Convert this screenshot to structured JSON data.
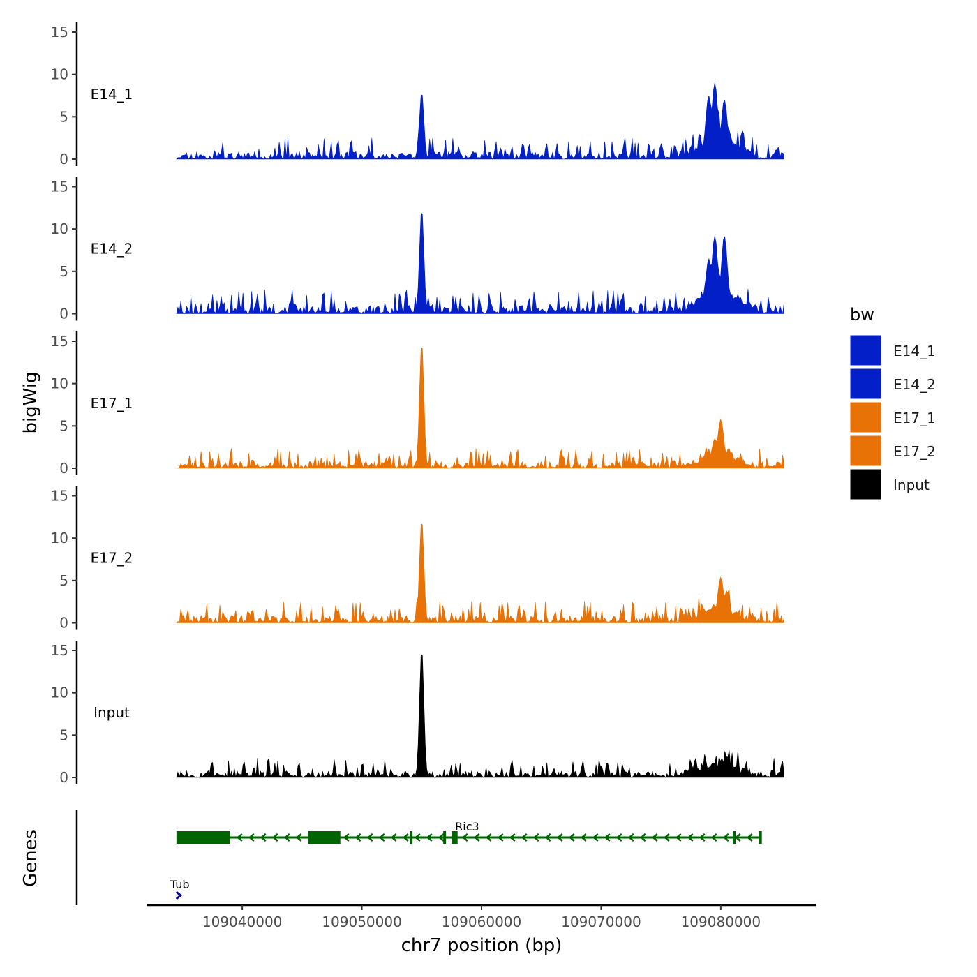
{
  "chart_data": {
    "type": "area",
    "title": "",
    "ylabel": "bigWig",
    "xlabel": "chr7 position (bp)",
    "xlim": [
      109032000,
      109088000
    ],
    "ylim": [
      0,
      15
    ],
    "yticks": [
      0,
      5,
      10,
      15
    ],
    "xticks": [
      109040000,
      109050000,
      109060000,
      109070000,
      109080000
    ],
    "xtick_labels": [
      "109040000",
      "109050000",
      "109060000",
      "109070000",
      "109080000"
    ],
    "data_range": [
      109034500,
      109085300
    ],
    "colors": {
      "E14": "#0320c8",
      "E17": "#e87206",
      "Input": "#000000",
      "gene_plus": "#00008b",
      "gene_minus": "#006400"
    },
    "series": [
      {
        "name": "E14_1",
        "color": "#0320c8",
        "peaks": [
          [
            109055000,
            8
          ],
          [
            109079500,
            9
          ],
          [
            109079000,
            7.5
          ],
          [
            109080300,
            7
          ]
        ],
        "background": 1.0,
        "seed": 11
      },
      {
        "name": "E14_2",
        "color": "#0320c8",
        "peaks": [
          [
            109055000,
            12.5
          ],
          [
            109079500,
            9.2
          ],
          [
            109080300,
            9.2
          ],
          [
            109079000,
            6.5
          ]
        ],
        "background": 1.1,
        "seed": 23
      },
      {
        "name": "E17_1",
        "color": "#e87206",
        "peaks": [
          [
            109055000,
            15
          ],
          [
            109080000,
            5.8
          ],
          [
            109079500,
            3.5
          ]
        ],
        "background": 0.9,
        "seed": 37
      },
      {
        "name": "E17_2",
        "color": "#e87206",
        "peaks": [
          [
            109055000,
            12.3
          ],
          [
            109080000,
            5.4
          ],
          [
            109080500,
            3.8
          ]
        ],
        "background": 1.0,
        "seed": 41
      },
      {
        "name": "Input",
        "color": "#000000",
        "peaks": [
          [
            109055000,
            15.3
          ],
          [
            109080500,
            2.5
          ]
        ],
        "background": 0.9,
        "seed": 53
      }
    ],
    "genes_track_label": "Genes",
    "genes": [
      {
        "name": "Ric3",
        "strand": "-",
        "start": 109034500,
        "end": 109083300,
        "exons": [
          [
            109034500,
            109039000
          ],
          [
            109045500,
            109048200
          ],
          [
            109054000,
            109054200
          ],
          [
            109056800,
            109057000
          ],
          [
            109057500,
            109058000
          ],
          [
            109081000,
            109081200
          ],
          [
            109083200,
            109083300
          ]
        ]
      },
      {
        "name": "Tub",
        "strand": "+",
        "start": 109034200,
        "end": 109034600,
        "exons": []
      }
    ],
    "legend": {
      "title": "bw",
      "entries": [
        "E14_1",
        "E14_2",
        "E17_1",
        "E17_2",
        "Input"
      ],
      "position": "right"
    }
  }
}
